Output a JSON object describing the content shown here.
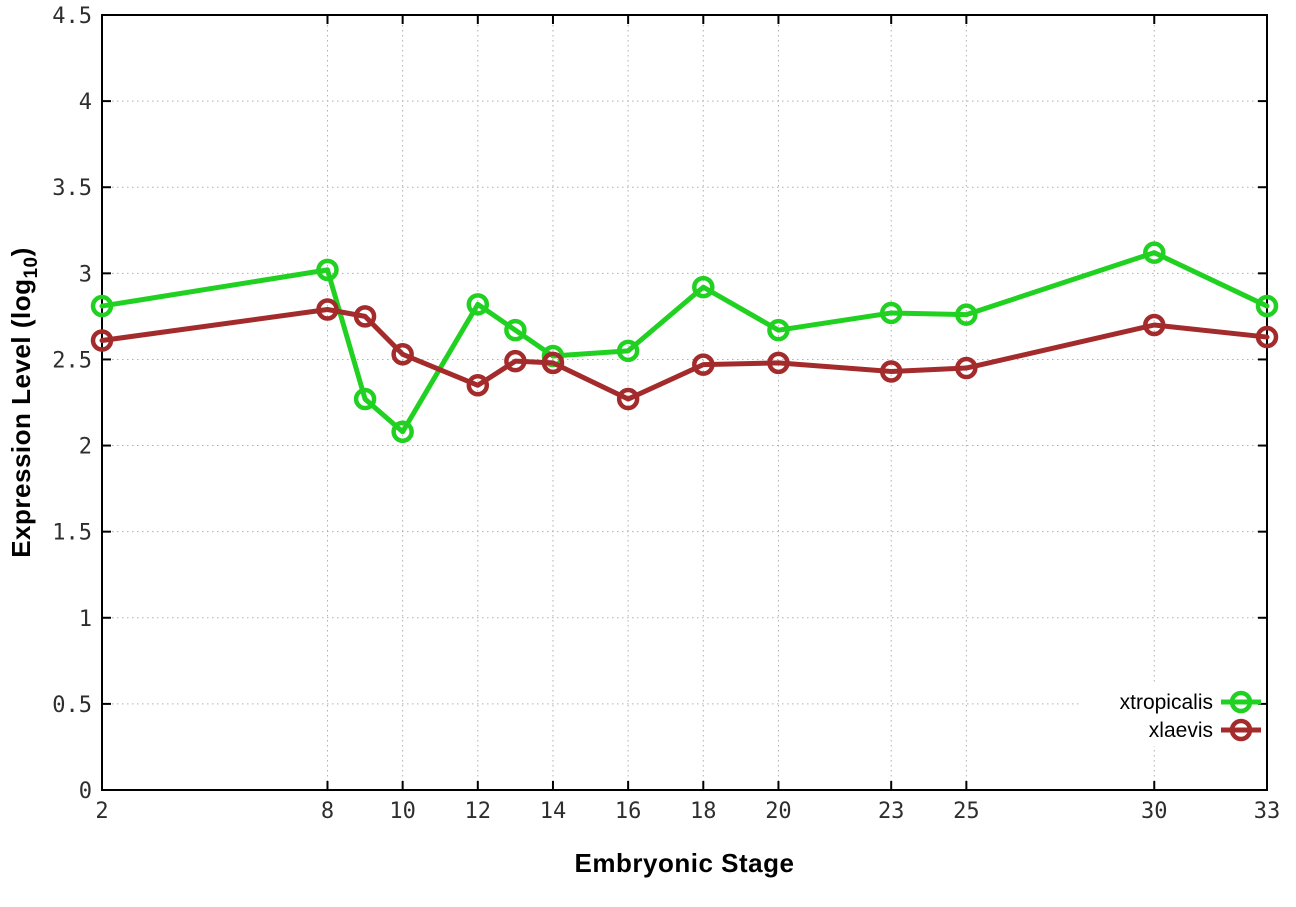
{
  "chart_data": {
    "type": "line",
    "title": "",
    "xlabel": "Embryonic Stage",
    "ylabel": "Expression Level (log10)",
    "ylabel_main": "Expression Level (log",
    "ylabel_sub": "10",
    "ylabel_close": ")",
    "x": [
      2,
      8,
      9,
      10,
      12,
      13,
      14,
      16,
      18,
      20,
      23,
      25,
      30,
      33
    ],
    "xticks": [
      2,
      8,
      10,
      12,
      14,
      16,
      18,
      20,
      23,
      25,
      30,
      33
    ],
    "yticks": [
      0,
      0.5,
      1,
      1.5,
      2,
      2.5,
      3,
      3.5,
      4,
      4.5
    ],
    "ytick_labels": [
      "0",
      "0.5",
      "1",
      "1.5",
      "2",
      "2.5",
      "3",
      "3.5",
      "4",
      "4.5"
    ],
    "xlim": [
      2,
      33
    ],
    "ylim": [
      0,
      4.5
    ],
    "grid": true,
    "background_color": "#ffffff",
    "legend_position": "bottom-right",
    "series": [
      {
        "name": "xtropicalis",
        "color": "#21d121",
        "marker": "open-circle",
        "values": [
          2.81,
          3.02,
          2.27,
          2.08,
          2.82,
          2.67,
          2.52,
          2.55,
          2.92,
          2.67,
          2.77,
          2.76,
          3.12,
          2.81
        ]
      },
      {
        "name": "xlaevis",
        "color": "#a42b2b",
        "marker": "open-circle",
        "values": [
          2.61,
          2.79,
          2.75,
          2.53,
          2.35,
          2.49,
          2.48,
          2.27,
          2.47,
          2.48,
          2.43,
          2.45,
          2.7,
          2.63
        ]
      }
    ]
  }
}
